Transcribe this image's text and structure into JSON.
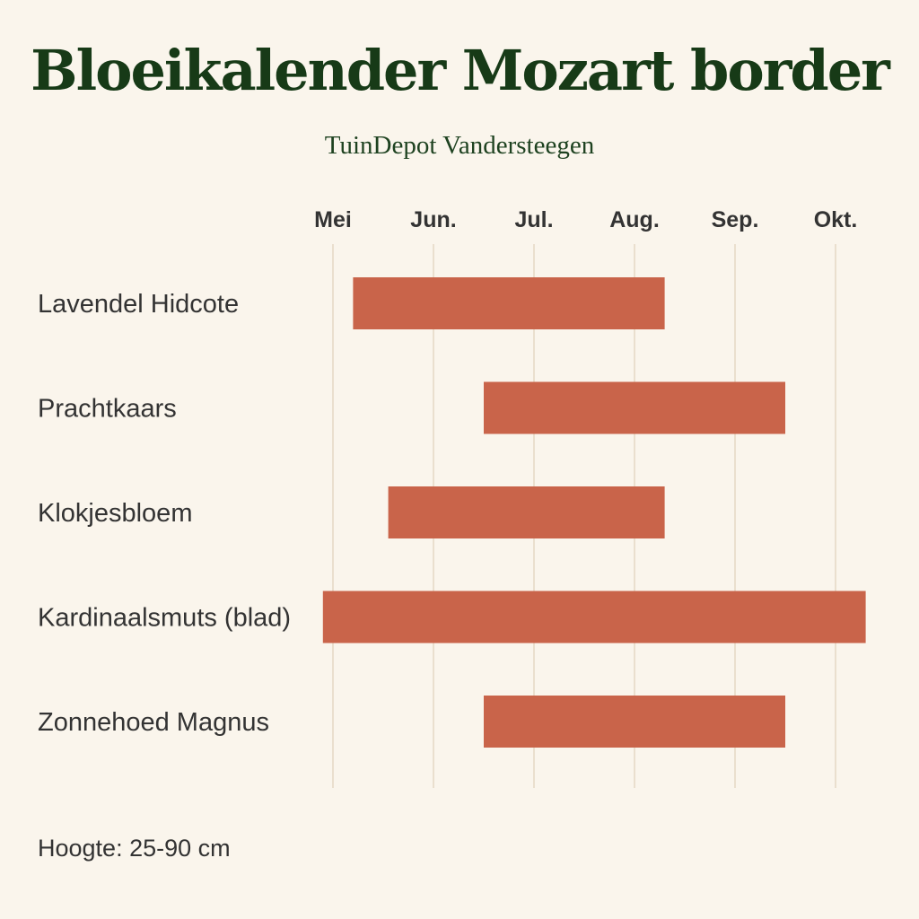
{
  "title": "Bloeikalender Mozart border",
  "subtitle": "TuinDepot Vandersteegen",
  "footer": "Hoogte: 25-90 cm",
  "colors": {
    "background": "#faf5ec",
    "title": "#173a17",
    "bar": "#c9644a",
    "grid": "#eadfce",
    "label": "#333333"
  },
  "chart_data": {
    "type": "bar",
    "orientation": "horizontal-gantt",
    "x_ticks": [
      "Mei",
      "Jun.",
      "Jul.",
      "Aug.",
      "Sep.",
      "Okt."
    ],
    "x_unit": "month (Mei = 0, Okt. = 5)",
    "xlim": [
      0,
      5
    ],
    "grid": true,
    "categories": [
      "Lavendel Hidcote",
      "Prachtkaars",
      "Klokjesbloem",
      "Kardinaalsmuts (blad)",
      "Zonnehoed Magnus"
    ],
    "ranges": [
      [
        0.2,
        3.3
      ],
      [
        1.5,
        4.5
      ],
      [
        0.55,
        3.3
      ],
      [
        -0.1,
        5.3
      ],
      [
        1.5,
        4.5
      ]
    ]
  }
}
